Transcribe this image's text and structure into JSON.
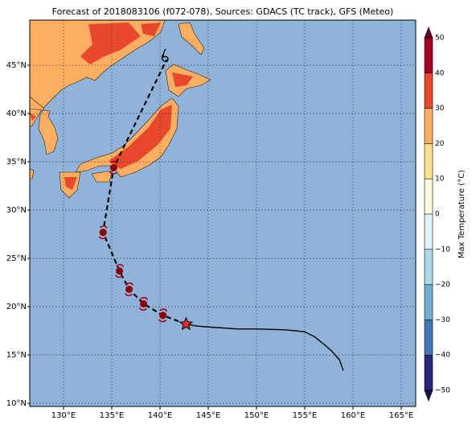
{
  "chart_data": {
    "type": "map",
    "title": "Forecast of 2018083106 (f072-078), Sources: GDACS (TC track), GFS (Meteo)",
    "xlim": [
      126.5,
      166.5
    ],
    "ylim": [
      9.67,
      49.67
    ],
    "xticks": [
      {
        "value": 130,
        "label": "130°E"
      },
      {
        "value": 135,
        "label": "135°E"
      },
      {
        "value": 140,
        "label": "140°E"
      },
      {
        "value": 145,
        "label": "145°E"
      },
      {
        "value": 150,
        "label": "150°E"
      },
      {
        "value": 155,
        "label": "155°E"
      },
      {
        "value": 160,
        "label": "160°E"
      },
      {
        "value": 165,
        "label": "165°E"
      }
    ],
    "yticks": [
      {
        "value": 10,
        "label": "10°N"
      },
      {
        "value": 15,
        "label": "15°N"
      },
      {
        "value": 20,
        "label": "20°N"
      },
      {
        "value": 25,
        "label": "25°N"
      },
      {
        "value": 30,
        "label": "30°N"
      },
      {
        "value": 35,
        "label": "35°N"
      },
      {
        "value": 40,
        "label": "40°N"
      },
      {
        "value": 45,
        "label": "45°N"
      }
    ],
    "grid": true,
    "track_observed": {
      "color": "#000000",
      "lon": [
        159.0,
        158.6,
        157.8,
        157.0,
        156.0,
        155.0,
        153.0,
        150.0,
        148.0,
        145.0,
        143.8,
        142.7
      ],
      "lat": [
        13.4,
        14.5,
        15.4,
        16.1,
        16.9,
        17.4,
        17.6,
        17.7,
        17.7,
        17.9,
        18.0,
        18.2
      ]
    },
    "track_forecast": {
      "color": "#000000",
      "lon": [
        142.7,
        140.3,
        138.3,
        136.8,
        135.8,
        134.1,
        135.2,
        140.7
      ],
      "lat": [
        18.2,
        19.1,
        20.3,
        21.8,
        23.7,
        27.7,
        34.4,
        45.6
      ]
    },
    "colorbar": {
      "label": "Max Temperature (°C)",
      "clim": [
        -50,
        50
      ],
      "ticks": [
        {
          "value": -50,
          "label": "−50"
        },
        {
          "value": -40,
          "label": "−40"
        },
        {
          "value": -30,
          "label": "−30"
        },
        {
          "value": -20,
          "label": "−20"
        },
        {
          "value": -10,
          "label": "−10"
        },
        0,
        10,
        20,
        30,
        40,
        50
      ],
      "colors": [
        "#29287d",
        "#4575b4",
        "#74add1",
        "#abd9e9",
        "#e0f3f8",
        "#fffce0",
        "#fee090",
        "#fdae61",
        "#e8482c",
        "#a50026"
      ],
      "extend_colors": [
        "#141452",
        "#67001f"
      ]
    }
  }
}
